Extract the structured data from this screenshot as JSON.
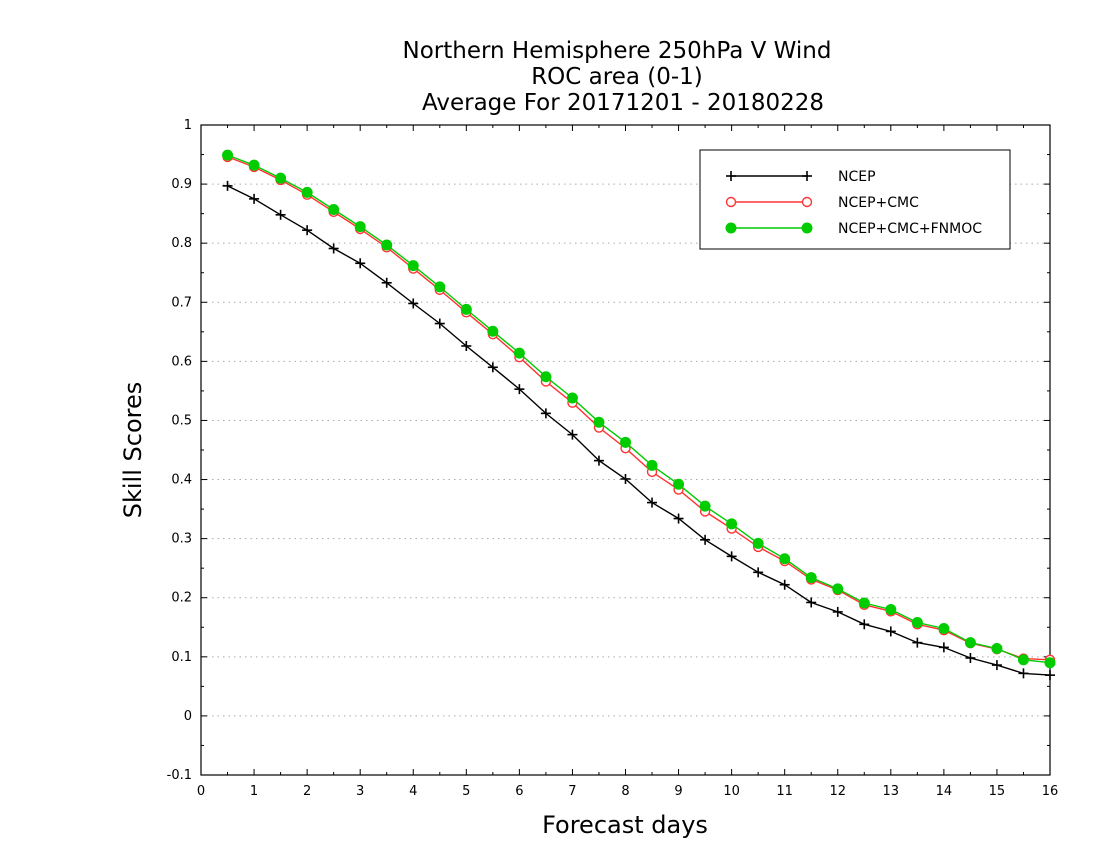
{
  "chart_data": {
    "type": "line",
    "title_lines": [
      "Northern Hemisphere 250hPa V Wind",
      "ROC area (0-1)",
      "Average For 20171201 - 20180228"
    ],
    "xlabel": "Forecast days",
    "ylabel": "Skill Scores",
    "xlim": [
      0,
      16
    ],
    "ylim": [
      -0.1,
      1
    ],
    "x_ticks": [
      0,
      1,
      2,
      3,
      4,
      5,
      6,
      7,
      8,
      9,
      10,
      11,
      12,
      13,
      14,
      15,
      16
    ],
    "y_ticks": [
      -0.1,
      0,
      0.1,
      0.2,
      0.3,
      0.4,
      0.5,
      0.6,
      0.7,
      0.8,
      0.9,
      1
    ],
    "y_tick_labels": [
      "-0.1",
      "0",
      "0.1",
      "0.2",
      "0.3",
      "0.4",
      "0.5",
      "0.6",
      "0.7",
      "0.8",
      "0.9",
      "1"
    ],
    "grid": "horizontal dotted",
    "legend_position": "top-right",
    "x": [
      0.5,
      1,
      1.5,
      2,
      2.5,
      3,
      3.5,
      4,
      4.5,
      5,
      5.5,
      6,
      6.5,
      7,
      7.5,
      8,
      8.5,
      9,
      9.5,
      10,
      10.5,
      11,
      11.5,
      12,
      12.5,
      13,
      13.5,
      14,
      14.5,
      15,
      15.5,
      16
    ],
    "series": [
      {
        "name": "NCEP",
        "color": "#000000",
        "marker": "plus",
        "values": [
          0.897,
          0.875,
          0.848,
          0.822,
          0.791,
          0.766,
          0.733,
          0.698,
          0.664,
          0.626,
          0.59,
          0.553,
          0.512,
          0.476,
          0.432,
          0.401,
          0.361,
          0.334,
          0.298,
          0.27,
          0.243,
          0.222,
          0.192,
          0.176,
          0.155,
          0.143,
          0.124,
          0.116,
          0.098,
          0.086,
          0.072,
          0.069
        ]
      },
      {
        "name": "NCEP+CMC",
        "color": "#ff3333",
        "marker": "open-circle",
        "values": [
          0.946,
          0.929,
          0.907,
          0.882,
          0.853,
          0.824,
          0.793,
          0.757,
          0.721,
          0.683,
          0.646,
          0.607,
          0.566,
          0.53,
          0.488,
          0.453,
          0.413,
          0.383,
          0.346,
          0.317,
          0.286,
          0.262,
          0.231,
          0.213,
          0.188,
          0.177,
          0.155,
          0.145,
          0.123,
          0.113,
          0.097,
          0.095
        ]
      },
      {
        "name": "NCEP+CMC+FNMOC",
        "color": "#00cc00",
        "marker": "filled-circle",
        "values": [
          0.949,
          0.932,
          0.91,
          0.886,
          0.857,
          0.828,
          0.797,
          0.762,
          0.726,
          0.688,
          0.651,
          0.614,
          0.574,
          0.538,
          0.497,
          0.463,
          0.424,
          0.392,
          0.355,
          0.325,
          0.292,
          0.266,
          0.234,
          0.215,
          0.191,
          0.18,
          0.158,
          0.148,
          0.124,
          0.114,
          0.095,
          0.09
        ]
      }
    ]
  }
}
